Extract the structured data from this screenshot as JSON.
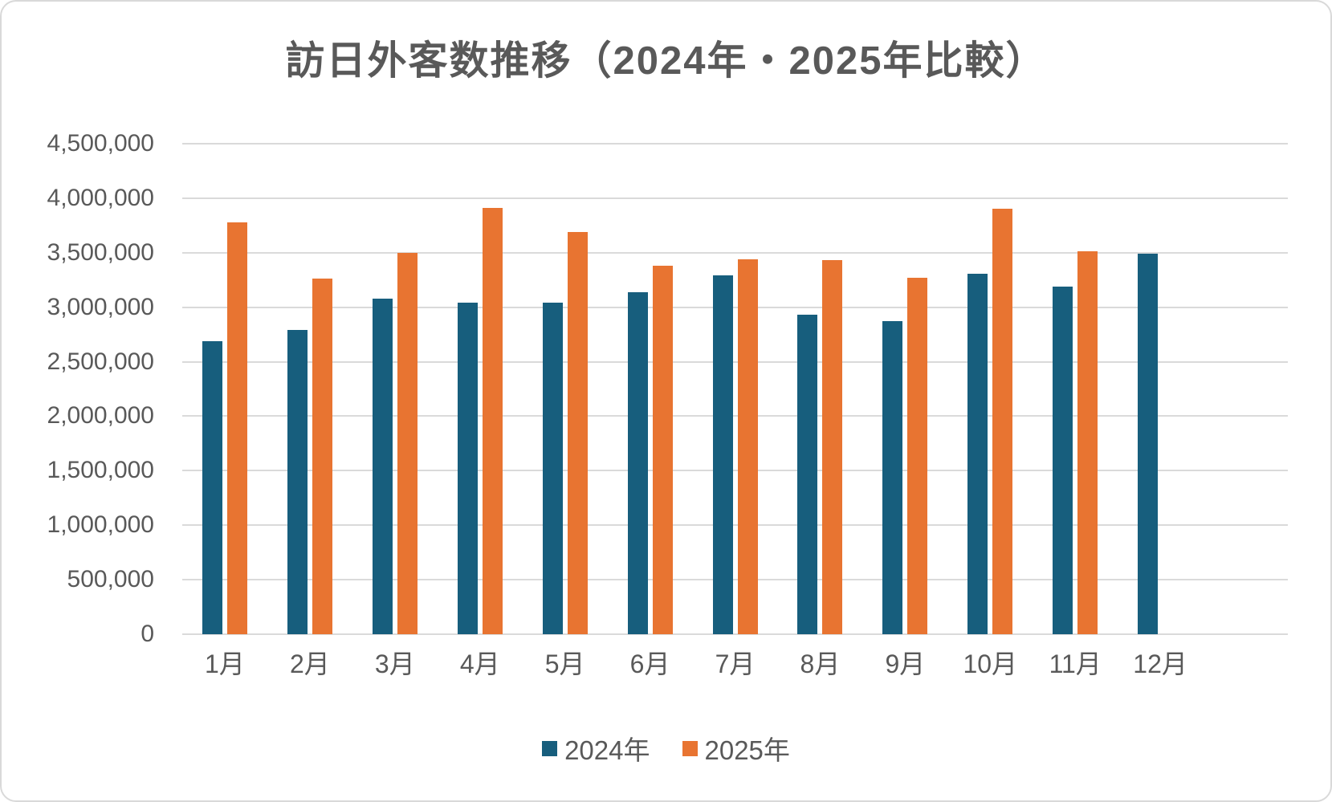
{
  "chart_data": {
    "type": "bar",
    "title": "訪日外客数推移（2024年・2025年比較）",
    "categories": [
      "1月",
      "2月",
      "3月",
      "4月",
      "5月",
      "6月",
      "7月",
      "8月",
      "9月",
      "10月",
      "11月",
      "12月"
    ],
    "series": [
      {
        "name": "2024年",
        "color": "#175E7D",
        "values": [
          2690000,
          2790000,
          3080000,
          3040000,
          3040000,
          3140000,
          3290000,
          2930000,
          2870000,
          3310000,
          3190000,
          3490000
        ]
      },
      {
        "name": "2025年",
        "color": "#E87431",
        "values": [
          3780000,
          3260000,
          3500000,
          3910000,
          3690000,
          3380000,
          3440000,
          3430000,
          3270000,
          3900000,
          3510000,
          null
        ]
      }
    ],
    "xlabel": "",
    "ylabel": "",
    "ylim": [
      0,
      4500000
    ],
    "ytick_step": 500000,
    "ytick_labels": [
      "0",
      "500,000",
      "1,000,000",
      "1,500,000",
      "2,000,000",
      "2,500,000",
      "3,000,000",
      "3,500,000",
      "4,000,000",
      "4,500,000"
    ],
    "grid": true,
    "legend_position": "bottom",
    "extra_empty_slots": 1
  },
  "colors": {
    "grid": "#DADADA",
    "axis_text": "#595959",
    "title_text": "#595959",
    "background": "#FFFFFF"
  }
}
